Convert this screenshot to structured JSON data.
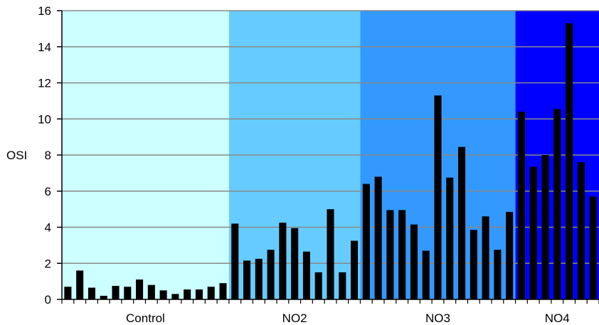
{
  "chart_data": {
    "type": "bar",
    "title": "",
    "xlabel": "",
    "ylabel": "OSI",
    "ylim": [
      0,
      16
    ],
    "yticks": [
      0,
      2,
      4,
      6,
      8,
      10,
      12,
      14,
      16
    ],
    "grid": true,
    "groups": [
      {
        "name": "Control",
        "color": "#ccffff",
        "values": [
          0.7,
          1.6,
          0.65,
          0.2,
          0.75,
          0.7,
          1.1,
          0.8,
          0.5,
          0.3,
          0.55,
          0.55,
          0.7,
          0.9
        ]
      },
      {
        "name": "NO2",
        "color": "#66ccff",
        "values": [
          4.2,
          2.15,
          2.25,
          2.75,
          4.25,
          3.95,
          2.65,
          1.5,
          5.0,
          1.5,
          3.25
        ]
      },
      {
        "name": "NO3",
        "color": "#3399ff",
        "values": [
          6.4,
          6.8,
          4.95,
          4.95,
          4.15,
          2.7,
          11.3,
          6.75,
          8.45,
          3.85,
          4.6,
          2.75,
          4.85
        ]
      },
      {
        "name": "NO4",
        "color": "#0000ff",
        "values": [
          10.4,
          7.35,
          8.0,
          10.55,
          15.3,
          7.6,
          5.7
        ]
      }
    ]
  }
}
